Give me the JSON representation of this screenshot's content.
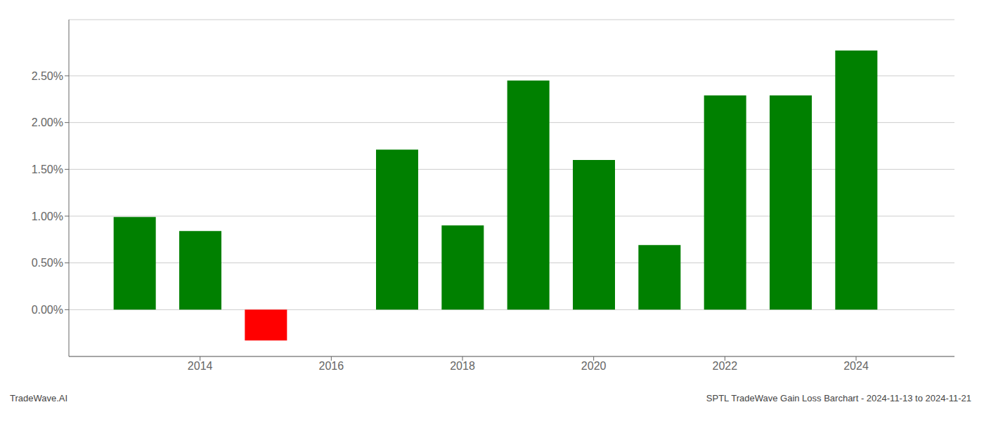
{
  "chart_data": {
    "type": "bar",
    "x": [
      2013,
      2014,
      2015,
      2017,
      2018,
      2019,
      2020,
      2021,
      2022,
      2023,
      2024
    ],
    "values": [
      0.0099,
      0.0084,
      -0.0033,
      0.0171,
      0.009,
      0.0245,
      0.016,
      0.0069,
      0.0229,
      0.0229,
      0.0277
    ],
    "colors": [
      "#008000",
      "#008000",
      "#ff0000",
      "#008000",
      "#008000",
      "#008000",
      "#008000",
      "#008000",
      "#008000",
      "#008000",
      "#008000"
    ],
    "xlim": [
      2012.0,
      2025.5
    ],
    "xticks": [
      2014,
      2016,
      2018,
      2020,
      2022,
      2024
    ],
    "ylim": [
      -0.005,
      0.031
    ],
    "yticks": [
      {
        "value": 0.0,
        "label": "0.00%"
      },
      {
        "value": 0.005,
        "label": "0.50%"
      },
      {
        "value": 0.01,
        "label": "1.00%"
      },
      {
        "value": 0.015,
        "label": "1.50%"
      },
      {
        "value": 0.02,
        "label": "2.00%"
      },
      {
        "value": 0.025,
        "label": "2.50%"
      }
    ],
    "grid": "y",
    "annotations": [
      "TradeWave.AI",
      "SPTL TradeWave Gain Loss Barchart - 2024-11-13 to 2024-11-21"
    ]
  }
}
